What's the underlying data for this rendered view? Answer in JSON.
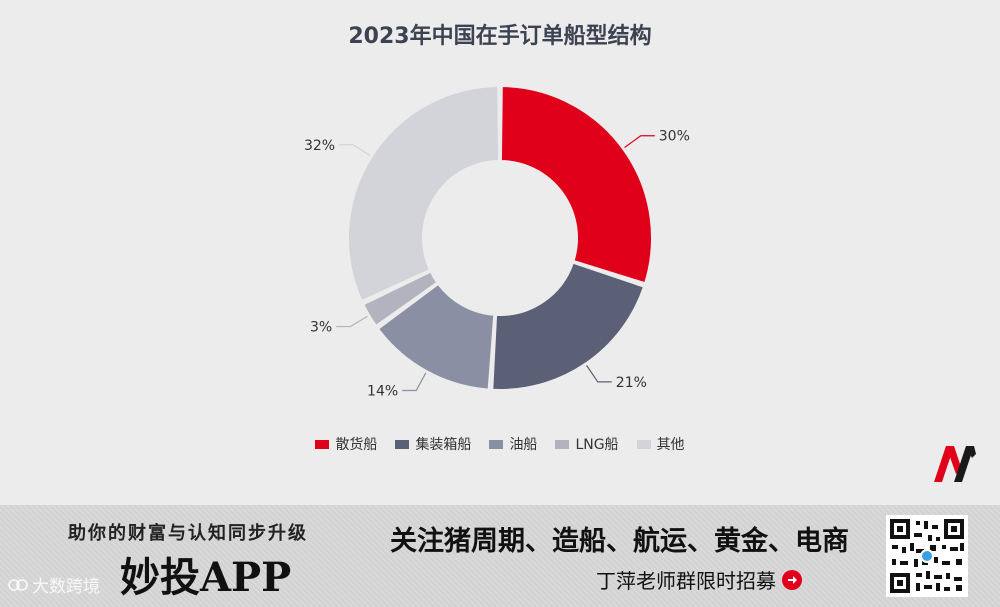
{
  "chart_data": {
    "type": "pie",
    "title": "2023年中国在手订单船型结构",
    "categories": [
      "散货船",
      "集装箱船",
      "油船",
      "LNG船",
      "其他"
    ],
    "values": [
      30,
      21,
      14,
      3,
      32
    ],
    "labels": [
      "30%",
      "21%",
      "14%",
      "3%",
      "32%"
    ],
    "colors": [
      "#e0001a",
      "#5c6076",
      "#8b8fa3",
      "#b1b3be",
      "#d2d4da"
    ],
    "legend_position": "bottom"
  },
  "banner": {
    "slogan": "助你的财富与认知同步升级",
    "app_name": "妙投APP",
    "topics": "关注猪周期、造船、航运、黄金、电商",
    "recruit": "丁萍老师群限时招募"
  },
  "watermark": {
    "text": "大数跨境"
  },
  "icons": {
    "brand_logo": "huxiu-m-logo-icon",
    "qr_code": "qr-code-icon",
    "arrow": "arrow-right-icon"
  }
}
